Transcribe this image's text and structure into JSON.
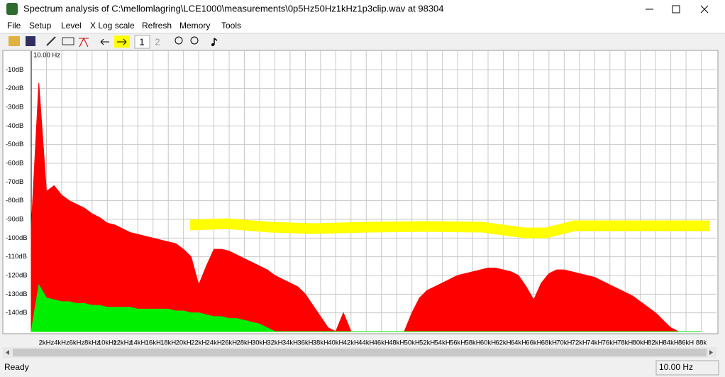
{
  "window": {
    "title": "Spectrum analysis of C:\\mellomlagring\\LCE1000\\measurements\\0p5Hz50Hz1kHz1p3clip.wav at 98304"
  },
  "menu": [
    "File",
    "Setup",
    "Level",
    "X Log scale",
    "Refresh",
    "Memory",
    "Tools"
  ],
  "toolbar": {
    "pages": [
      "1",
      "2"
    ]
  },
  "chart_data": {
    "type": "area",
    "corner_label": "10.00 Hz",
    "x": [
      0,
      1000,
      2000,
      3000,
      4000,
      5000,
      6000,
      7000,
      8000,
      9000,
      10000,
      11000,
      12000,
      13000,
      14000,
      15000,
      16000,
      17000,
      18000,
      19000,
      20000,
      21000,
      22000,
      23000,
      24000,
      25000,
      26000,
      27000,
      28000,
      29000,
      30000,
      31000,
      32000,
      33000,
      34000,
      35000,
      36000,
      37000,
      38000,
      39000,
      40000,
      41000,
      42000,
      43000,
      44000,
      45000,
      46000,
      47000,
      48000,
      49000,
      50000,
      51000,
      52000,
      53000,
      54000,
      55000,
      56000,
      57000,
      58000,
      59000,
      60000,
      61000,
      62000,
      63000,
      64000,
      65000,
      66000,
      67000,
      68000,
      69000,
      70000,
      71000,
      72000,
      73000,
      74000,
      75000,
      76000,
      77000,
      78000,
      79000,
      80000,
      81000,
      82000,
      83000,
      84000,
      85000,
      86000,
      87000,
      88000
    ],
    "series": [
      {
        "color": "#ff0000",
        "values": [
          -95,
          -17,
          -75,
          -72,
          -77,
          -80,
          -82,
          -84,
          -87,
          -89,
          -92,
          -93,
          -95,
          -97,
          -98,
          -99,
          -100,
          -101,
          -102,
          -103,
          -106,
          -110,
          -125,
          -115,
          -106,
          -106,
          -107,
          -109,
          -111,
          -113,
          -115,
          -117,
          -120,
          -122,
          -124,
          -126,
          -130,
          -136,
          -142,
          -148,
          -150,
          -140,
          -150,
          -150,
          -150,
          -150,
          -150,
          -150,
          -150,
          -150,
          -140,
          -132,
          -128,
          -126,
          -124,
          -122,
          -120,
          -119,
          -118,
          -117,
          -116,
          -116,
          -117,
          -118,
          -120,
          -126,
          -133,
          -124,
          -119,
          -117,
          -117,
          -118,
          -119,
          -120,
          -121,
          -123,
          -125,
          -127,
          -129,
          -131,
          -134,
          -137,
          -140,
          -144,
          -148,
          -150,
          -150,
          -150,
          -150
        ]
      },
      {
        "color": "#00ee00",
        "values": [
          -150,
          -125,
          -132,
          -133,
          -134,
          -134,
          -135,
          -135,
          -136,
          -136,
          -137,
          -137,
          -137,
          -137,
          -138,
          -138,
          -138,
          -138,
          -138,
          -139,
          -139,
          -140,
          -140,
          -141,
          -142,
          -142,
          -143,
          -143,
          -144,
          -145,
          -146,
          -148,
          -150,
          -150,
          -150,
          -150,
          -150,
          -150,
          -150,
          -150,
          -150,
          -150,
          -150,
          -150,
          -150,
          -150,
          -150,
          -150,
          -150,
          -150,
          -150,
          -150,
          -150,
          -150,
          -150,
          -150,
          -150,
          -150,
          -150,
          -150,
          -150,
          -150,
          -150,
          -150,
          -150,
          -150,
          -150,
          -150,
          -150,
          -150,
          -150,
          -150,
          -150,
          -150,
          -150,
          -150,
          -150,
          -150,
          -150,
          -150,
          -150,
          -150,
          -150,
          -150,
          -150,
          -150,
          -150,
          -150,
          -150
        ]
      }
    ],
    "xlim": [
      0,
      90000
    ],
    "ylim": [
      -150,
      0
    ],
    "yticks": [
      {
        "value": -10,
        "label": "-10dB"
      },
      {
        "value": -20,
        "label": "-20dB"
      },
      {
        "value": -30,
        "label": "-30dB"
      },
      {
        "value": -40,
        "label": "-40dB"
      },
      {
        "value": -50,
        "label": "-50dB"
      },
      {
        "value": -60,
        "label": "-60dB"
      },
      {
        "value": -70,
        "label": "-70dB"
      },
      {
        "value": -80,
        "label": "-80dB"
      },
      {
        "value": -90,
        "label": "-90dB"
      },
      {
        "value": -100,
        "label": "-100dB"
      },
      {
        "value": -110,
        "label": "-110dB"
      },
      {
        "value": -120,
        "label": "-120dB"
      },
      {
        "value": -130,
        "label": "-130dB"
      },
      {
        "value": -140,
        "label": "-140dB"
      }
    ],
    "xticks": [
      {
        "value": 2000,
        "label": "2kHz"
      },
      {
        "value": 4000,
        "label": "4kHz"
      },
      {
        "value": 6000,
        "label": "6kHz"
      },
      {
        "value": 8000,
        "label": "8kHz"
      },
      {
        "value": 10000,
        "label": "10kHz"
      },
      {
        "value": 12000,
        "label": "12kHz"
      },
      {
        "value": 14000,
        "label": "14kH"
      },
      {
        "value": 16000,
        "label": "16kH"
      },
      {
        "value": 18000,
        "label": "18kH"
      },
      {
        "value": 20000,
        "label": "20kH"
      },
      {
        "value": 22000,
        "label": "22kH"
      },
      {
        "value": 24000,
        "label": "24kH"
      },
      {
        "value": 26000,
        "label": "26kH"
      },
      {
        "value": 28000,
        "label": "28kH"
      },
      {
        "value": 30000,
        "label": "30kH"
      },
      {
        "value": 32000,
        "label": "32kH"
      },
      {
        "value": 34000,
        "label": "34kH"
      },
      {
        "value": 36000,
        "label": "36kH"
      },
      {
        "value": 38000,
        "label": "38kH"
      },
      {
        "value": 40000,
        "label": "40kH"
      },
      {
        "value": 42000,
        "label": "42kH"
      },
      {
        "value": 44000,
        "label": "44kH"
      },
      {
        "value": 46000,
        "label": "46kH"
      },
      {
        "value": 48000,
        "label": "48kH"
      },
      {
        "value": 50000,
        "label": "50kH"
      },
      {
        "value": 52000,
        "label": "52kH"
      },
      {
        "value": 54000,
        "label": "54kH"
      },
      {
        "value": 56000,
        "label": "56kH"
      },
      {
        "value": 58000,
        "label": "58kH"
      },
      {
        "value": 60000,
        "label": "60kH"
      },
      {
        "value": 62000,
        "label": "62kH"
      },
      {
        "value": 64000,
        "label": "64kH"
      },
      {
        "value": 66000,
        "label": "66kH"
      },
      {
        "value": 68000,
        "label": "68kH"
      },
      {
        "value": 70000,
        "label": "70kH"
      },
      {
        "value": 72000,
        "label": "72kH"
      },
      {
        "value": 74000,
        "label": "74kH"
      },
      {
        "value": 76000,
        "label": "76kH"
      },
      {
        "value": 78000,
        "label": "78kH"
      },
      {
        "value": 80000,
        "label": "80kH"
      },
      {
        "value": 82000,
        "label": "82kH"
      },
      {
        "value": 84000,
        "label": "84kH"
      },
      {
        "value": 86000,
        "label": "86kH"
      },
      {
        "value": 88000,
        "label": "88k"
      }
    ],
    "grid": true
  },
  "status": {
    "text": "Ready",
    "resolution": "10.00 Hz"
  }
}
